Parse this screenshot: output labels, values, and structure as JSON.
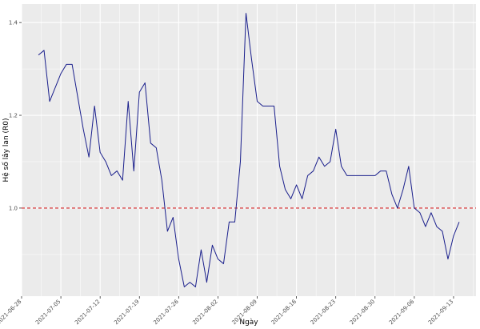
{
  "chart_data": {
    "type": "line",
    "title": "",
    "xlabel": "Ngày",
    "ylabel": "Hệ số lây lan (R0)",
    "xlim": [
      "2021-06-28",
      "2021-09-17"
    ],
    "ylim": [
      0.81,
      1.44
    ],
    "y_ticks": [
      1.0,
      1.2,
      1.4
    ],
    "x_ticks": [
      "2021-06-28",
      "2021-07-05",
      "2021-07-12",
      "2021-07-19",
      "2021-07-26",
      "2021-08-02",
      "2021-08-09",
      "2021-08-16",
      "2021-08-23",
      "2021-08-30",
      "2021-09-06",
      "2021-09-13"
    ],
    "grid": true,
    "legend": "none",
    "panel_background": "#ebebeb",
    "grid_color": "#ffffff",
    "line_color": "#1a1f8c",
    "reference_line": {
      "y": 1.0,
      "style": "dashed",
      "color": "#d62728"
    },
    "series": [
      {
        "x": [
          "2021-07-01",
          "2021-07-02",
          "2021-07-03",
          "2021-07-04",
          "2021-07-05",
          "2021-07-06",
          "2021-07-07",
          "2021-07-08",
          "2021-07-09",
          "2021-07-10",
          "2021-07-11",
          "2021-07-12",
          "2021-07-13",
          "2021-07-14",
          "2021-07-15",
          "2021-07-16",
          "2021-07-17",
          "2021-07-18",
          "2021-07-19",
          "2021-07-20",
          "2021-07-21",
          "2021-07-22",
          "2021-07-23",
          "2021-07-24",
          "2021-07-25",
          "2021-07-26",
          "2021-07-27",
          "2021-07-28",
          "2021-07-29",
          "2021-07-30",
          "2021-07-31",
          "2021-08-01",
          "2021-08-02",
          "2021-08-03",
          "2021-08-04",
          "2021-08-05",
          "2021-08-06",
          "2021-08-07",
          "2021-08-08",
          "2021-08-09",
          "2021-08-10",
          "2021-08-11",
          "2021-08-12",
          "2021-08-13",
          "2021-08-14",
          "2021-08-15",
          "2021-08-16",
          "2021-08-17",
          "2021-08-18",
          "2021-08-19",
          "2021-08-20",
          "2021-08-21",
          "2021-08-22",
          "2021-08-23",
          "2021-08-24",
          "2021-08-25",
          "2021-08-26",
          "2021-08-27",
          "2021-08-28",
          "2021-08-29",
          "2021-08-30",
          "2021-08-31",
          "2021-09-01",
          "2021-09-02",
          "2021-09-03",
          "2021-09-04",
          "2021-09-05",
          "2021-09-06",
          "2021-09-07",
          "2021-09-08",
          "2021-09-09",
          "2021-09-10",
          "2021-09-11",
          "2021-09-12",
          "2021-09-13",
          "2021-09-14"
        ],
        "values": [
          1.33,
          1.34,
          1.23,
          1.26,
          1.29,
          1.31,
          1.31,
          1.24,
          1.17,
          1.11,
          1.22,
          1.12,
          1.1,
          1.07,
          1.08,
          1.06,
          1.23,
          1.08,
          1.25,
          1.27,
          1.14,
          1.13,
          1.06,
          0.95,
          0.98,
          0.89,
          0.83,
          0.84,
          0.83,
          0.91,
          0.84,
          0.92,
          0.89,
          0.88,
          0.97,
          0.97,
          1.1,
          1.42,
          1.32,
          1.23,
          1.22,
          1.22,
          1.22,
          1.09,
          1.04,
          1.02,
          1.05,
          1.02,
          1.07,
          1.08,
          1.11,
          1.09,
          1.1,
          1.17,
          1.09,
          1.07,
          1.07,
          1.07,
          1.07,
          1.07,
          1.07,
          1.08,
          1.08,
          1.03,
          1.0,
          1.04,
          1.09,
          1.0,
          0.99,
          0.96,
          0.99,
          0.96,
          0.95,
          0.89,
          0.94,
          0.97
        ]
      }
    ]
  }
}
